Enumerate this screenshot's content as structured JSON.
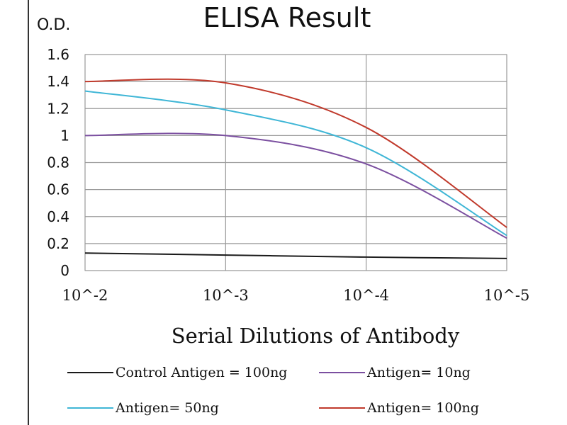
{
  "chart_data": {
    "type": "line",
    "title": "ELISA Result",
    "ylabel": "O.D.",
    "xlabel": "Serial Dilutions  of Antibody",
    "categories": [
      "10^-2",
      "10^-3",
      "10^-4",
      "10^-5"
    ],
    "y_ticks": [
      "0",
      "0.2",
      "0.4",
      "0.6",
      "0.8",
      "1",
      "1.2",
      "1.4",
      "1.6"
    ],
    "ylim": [
      0,
      1.6
    ],
    "grid": true,
    "legend_position": "bottom",
    "series": [
      {
        "name": "Control Antigen = 100ng",
        "color": "#1a1a1a",
        "values": [
          0.13,
          0.115,
          0.1,
          0.09
        ]
      },
      {
        "name": "Antigen= 10ng",
        "color": "#7b4fa0",
        "values": [
          1.0,
          1.0,
          0.79,
          0.24
        ]
      },
      {
        "name": "Antigen= 50ng",
        "color": "#3fb6d6",
        "values": [
          1.33,
          1.19,
          0.91,
          0.26
        ]
      },
      {
        "name": "Antigen= 100ng",
        "color": "#c0392b",
        "values": [
          1.4,
          1.39,
          1.06,
          0.32
        ]
      }
    ]
  }
}
